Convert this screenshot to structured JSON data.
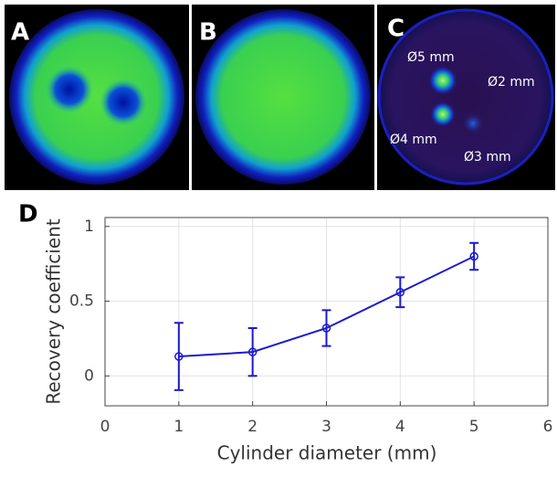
{
  "panels": [
    {
      "label": "A"
    },
    {
      "label": "B"
    },
    {
      "label": "C",
      "annotations": [
        "Ø5 mm",
        "Ø2 mm",
        "Ø4 mm",
        "Ø3 mm"
      ]
    }
  ],
  "chart_data": {
    "type": "line",
    "panel_label": "D",
    "xlabel": "Cylinder diameter (mm)",
    "ylabel": "Recovery coefficient",
    "x": [
      1,
      2,
      3,
      4,
      5
    ],
    "values": [
      0.13,
      0.16,
      0.32,
      0.56,
      0.8
    ],
    "errors": [
      0.225,
      0.16,
      0.12,
      0.1,
      0.09
    ],
    "color": "#1a1ad0",
    "xlim": [
      0,
      6
    ],
    "xticks": [
      0,
      1,
      2,
      3,
      4,
      5,
      6
    ],
    "ylim": [
      -0.2,
      1.06
    ],
    "yticks": [
      0,
      0.5,
      1
    ],
    "grid": true
  }
}
